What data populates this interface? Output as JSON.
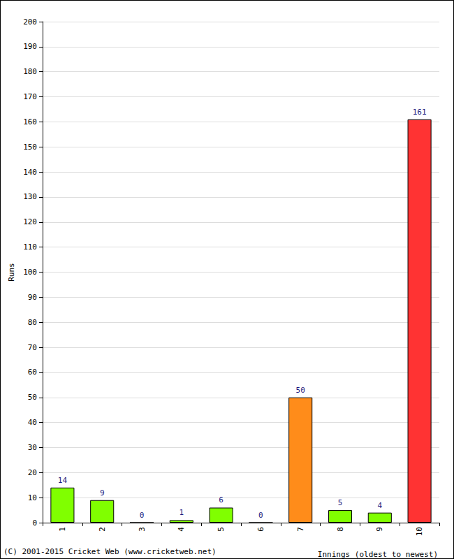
{
  "chart_data": {
    "type": "bar",
    "x_label": "Innings (oldest to newest)",
    "y_label": "Runs",
    "annotations": [
      "(C) 2001-2015 Cricket Web (www.cricketweb.net)"
    ],
    "categories": [
      "1",
      "2",
      "3",
      "4",
      "5",
      "6",
      "7",
      "8",
      "9",
      "10"
    ],
    "values": [
      14,
      9,
      0,
      1,
      6,
      0,
      50,
      5,
      4,
      161
    ],
    "colors": [
      "#80ff00",
      "#80ff00",
      "#80ff00",
      "#80ff00",
      "#80ff00",
      "#80ff00",
      "#ff8c1a",
      "#80ff00",
      "#80ff00",
      "#ff3333"
    ],
    "ylim": [
      0,
      200
    ],
    "yticks": [
      0,
      10,
      20,
      30,
      40,
      50,
      60,
      70,
      80,
      90,
      100,
      110,
      120,
      130,
      140,
      150,
      160,
      170,
      180,
      190,
      200
    ],
    "grid": true,
    "data_labels": true
  }
}
